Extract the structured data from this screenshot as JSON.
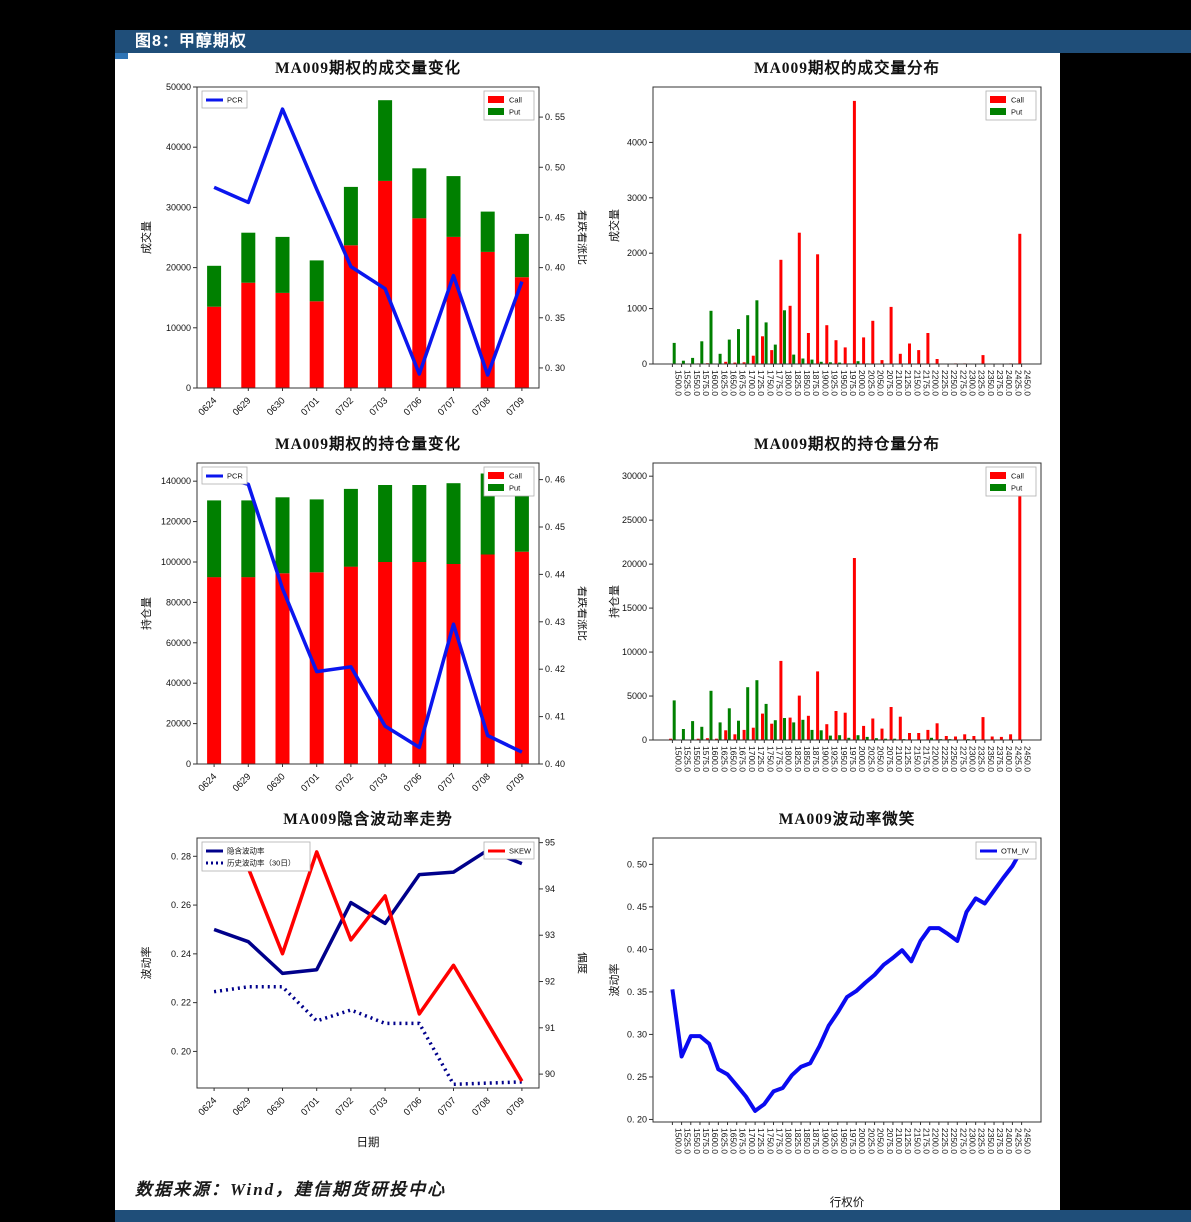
{
  "banner": {
    "label": "图8：甲醇期权"
  },
  "source_note": "数据来源：Wind，建信期货研投中心",
  "chart_data": [
    {
      "type": "bar",
      "bar_mode": "stacked",
      "title": "MA009期权的成交量变化",
      "ylabel_left": "成交量",
      "ylabel_right": "看跌看涨比",
      "xlabel": "",
      "categories": [
        "0624",
        "0629",
        "0630",
        "0701",
        "0702",
        "0703",
        "0706",
        "0707",
        "0708",
        "0709"
      ],
      "left_ylim": [
        0,
        50000
      ],
      "left_tick_vals": [
        0,
        10000,
        20000,
        30000,
        40000,
        50000
      ],
      "left_tick_labels": [
        "0",
        "10000",
        "20000",
        "30000",
        "40000",
        "50000"
      ],
      "right_ylim": [
        0.28,
        0.58
      ],
      "right_tick_vals": [
        0.3,
        0.35,
        0.4,
        0.45,
        0.5,
        0.55
      ],
      "right_tick_labels": [
        "0. 30",
        "0. 35",
        "0. 40",
        "0. 45",
        "0. 50",
        "0. 55"
      ],
      "series": [
        {
          "name": "Call",
          "type": "bar",
          "axis": "left",
          "color": "#ff0000",
          "values": [
            13500,
            17500,
            15800,
            14400,
            23700,
            34400,
            28200,
            25100,
            22600,
            18400
          ]
        },
        {
          "name": "Put",
          "type": "bar",
          "axis": "left",
          "color": "#008000",
          "values": [
            6800,
            8300,
            9300,
            6800,
            9700,
            13400,
            8300,
            10100,
            6700,
            7200
          ]
        },
        {
          "name": "PCR",
          "type": "line",
          "axis": "right",
          "color": "#0b16ee",
          "values": [
            0.48,
            0.465,
            0.558,
            0.478,
            0.401,
            0.379,
            0.294,
            0.392,
            0.293,
            0.386
          ]
        }
      ],
      "legends": [
        {
          "pos": "tl",
          "entries": [
            {
              "label": "PCR",
              "style": "line",
              "color": "#0b16ee"
            }
          ]
        },
        {
          "pos": "tr",
          "entries": [
            {
              "label": "Call",
              "style": "swatch",
              "color": "#ff0000"
            },
            {
              "label": "Put",
              "style": "swatch",
              "color": "#008000"
            }
          ]
        }
      ]
    },
    {
      "type": "bar",
      "bar_mode": "grouped",
      "title": "MA009期权的成交量分布",
      "ylabel_left": "成交量",
      "xlabel": "",
      "categories": [
        "1500.0",
        "1525.0",
        "1550.0",
        "1575.0",
        "1600.0",
        "1625.0",
        "1650.0",
        "1675.0",
        "1700.0",
        "1725.0",
        "1750.0",
        "1775.0",
        "1800.0",
        "1825.0",
        "1850.0",
        "1875.0",
        "1900.0",
        "1925.0",
        "1950.0",
        "1975.0",
        "2000.0",
        "2025.0",
        "2050.0",
        "2075.0",
        "2100.0",
        "2125.0",
        "2150.0",
        "2175.0",
        "2200.0",
        "2225.0",
        "2250.0",
        "2275.0",
        "2300.0",
        "2325.0",
        "2350.0",
        "2375.0",
        "2400.0",
        "2425.0",
        "2450.0"
      ],
      "left_ylim": [
        0,
        5000
      ],
      "left_tick_vals": [
        0,
        1000,
        2000,
        3000,
        4000
      ],
      "left_tick_labels": [
        "0",
        "1000",
        "2000",
        "3000",
        "4000"
      ],
      "series": [
        {
          "name": "Call",
          "type": "bar",
          "axis": "left",
          "color": "#ff0000",
          "values": [
            0,
            0,
            0,
            10,
            15,
            0,
            40,
            25,
            30,
            150,
            500,
            250,
            1880,
            1050,
            2370,
            560,
            1980,
            700,
            430,
            300,
            4750,
            480,
            780,
            70,
            1030,
            185,
            370,
            250,
            560,
            90,
            0,
            10,
            10,
            0,
            160,
            0,
            0,
            10,
            2350
          ]
        },
        {
          "name": "Put",
          "type": "bar",
          "axis": "left",
          "color": "#008000",
          "values": [
            380,
            60,
            110,
            410,
            960,
            185,
            440,
            630,
            880,
            1150,
            750,
            350,
            970,
            170,
            100,
            80,
            40,
            30,
            25,
            10,
            50,
            10,
            0,
            0,
            0,
            0,
            0,
            0,
            0,
            0,
            0,
            0,
            0,
            0,
            0,
            0,
            0,
            0,
            0
          ]
        }
      ],
      "legends": [
        {
          "pos": "tr",
          "entries": [
            {
              "label": "Call",
              "style": "swatch",
              "color": "#ff0000"
            },
            {
              "label": "Put",
              "style": "swatch",
              "color": "#008000"
            }
          ]
        }
      ]
    },
    {
      "type": "bar",
      "bar_mode": "stacked",
      "title": "MA009期权的持仓量变化",
      "ylabel_left": "持仓量",
      "ylabel_right": "看跌看涨比",
      "xlabel": "",
      "categories": [
        "0624",
        "0629",
        "0630",
        "0701",
        "0702",
        "0703",
        "0706",
        "0707",
        "0708",
        "0709"
      ],
      "left_ylim": [
        0,
        149000
      ],
      "left_tick_vals": [
        0,
        20000,
        40000,
        60000,
        80000,
        100000,
        120000,
        140000
      ],
      "left_tick_labels": [
        "0",
        "20000",
        "40000",
        "60000",
        "80000",
        "100000",
        "120000",
        "140000"
      ],
      "right_ylim": [
        0.4,
        0.4635
      ],
      "right_tick_vals": [
        0.4,
        0.41,
        0.42,
        0.43,
        0.44,
        0.45,
        0.46
      ],
      "right_tick_labels": [
        "0. 40",
        "0. 41",
        "0. 42",
        "0. 43",
        "0. 44",
        "0. 45",
        "0. 46"
      ],
      "series": [
        {
          "name": "Call",
          "type": "bar",
          "axis": "left",
          "color": "#ff0000",
          "values": [
            92500,
            92500,
            94400,
            94900,
            97700,
            100000,
            100000,
            99000,
            103700,
            105100
          ]
        },
        {
          "name": "Put",
          "type": "bar",
          "axis": "left",
          "color": "#008000",
          "values": [
            38000,
            38000,
            37600,
            36100,
            38500,
            38100,
            38100,
            40000,
            40100,
            39200
          ]
        },
        {
          "name": "PCR",
          "type": "line",
          "axis": "right",
          "color": "#0b16ee",
          "values": [
            0.461,
            0.459,
            0.437,
            0.4195,
            0.4205,
            0.408,
            0.4035,
            0.4295,
            0.406,
            0.4025
          ]
        }
      ],
      "legends": [
        {
          "pos": "tl",
          "entries": [
            {
              "label": "PCR",
              "style": "line",
              "color": "#0b16ee"
            }
          ]
        },
        {
          "pos": "tr",
          "entries": [
            {
              "label": "Call",
              "style": "swatch",
              "color": "#ff0000"
            },
            {
              "label": "Put",
              "style": "swatch",
              "color": "#008000"
            }
          ]
        }
      ]
    },
    {
      "type": "bar",
      "bar_mode": "grouped",
      "title": "MA009期权的持仓量分布",
      "ylabel_left": "持仓量",
      "xlabel": "",
      "categories": [
        "1500.0",
        "1525.0",
        "1550.0",
        "1575.0",
        "1600.0",
        "1625.0",
        "1650.0",
        "1675.0",
        "1700.0",
        "1725.0",
        "1750.0",
        "1775.0",
        "1800.0",
        "1825.0",
        "1850.0",
        "1875.0",
        "1900.0",
        "1925.0",
        "1950.0",
        "1975.0",
        "2000.0",
        "2025.0",
        "2050.0",
        "2075.0",
        "2100.0",
        "2125.0",
        "2150.0",
        "2175.0",
        "2200.0",
        "2225.0",
        "2250.0",
        "2275.0",
        "2300.0",
        "2325.0",
        "2350.0",
        "2375.0",
        "2400.0",
        "2425.0",
        "2450.0"
      ],
      "left_ylim": [
        0,
        31500
      ],
      "left_tick_vals": [
        0,
        5000,
        10000,
        15000,
        20000,
        25000,
        30000
      ],
      "left_tick_labels": [
        "0",
        "5000",
        "10000",
        "15000",
        "20000",
        "25000",
        "30000"
      ],
      "series": [
        {
          "name": "Call",
          "type": "bar",
          "axis": "left",
          "color": "#ff0000",
          "values": [
            150,
            0,
            50,
            150,
            200,
            150,
            1100,
            650,
            1150,
            1400,
            3000,
            1850,
            9000,
            2550,
            5050,
            2750,
            7800,
            1800,
            3300,
            3100,
            20700,
            1600,
            2450,
            1300,
            3750,
            2650,
            800,
            800,
            1150,
            1900,
            450,
            400,
            650,
            450,
            2600,
            400,
            350,
            650,
            30000
          ]
        },
        {
          "name": "Put",
          "type": "bar",
          "axis": "left",
          "color": "#008000",
          "values": [
            4500,
            1250,
            2150,
            1500,
            5600,
            2000,
            3600,
            2200,
            6000,
            6800,
            4100,
            2250,
            2500,
            2000,
            2300,
            1150,
            1100,
            500,
            550,
            250,
            550,
            350,
            200,
            150,
            150,
            100,
            50,
            50,
            250,
            100,
            100,
            50,
            100,
            50,
            0,
            0,
            0,
            0,
            0
          ]
        }
      ],
      "legends": [
        {
          "pos": "tr",
          "entries": [
            {
              "label": "Call",
              "style": "swatch",
              "color": "#ff0000"
            },
            {
              "label": "Put",
              "style": "swatch",
              "color": "#008000"
            }
          ]
        }
      ]
    },
    {
      "type": "line",
      "title": "MA009隐含波动率走势",
      "ylabel_left": "波动率",
      "ylabel_right": "偏度",
      "xlabel": "日期",
      "categories": [
        "0624",
        "0629",
        "0630",
        "0701",
        "0702",
        "0703",
        "0706",
        "0707",
        "0708",
        "0709"
      ],
      "left_ylim": [
        0.185,
        0.2875
      ],
      "left_tick_vals": [
        0.2,
        0.22,
        0.24,
        0.26,
        0.28
      ],
      "left_tick_labels": [
        "0. 20",
        "0. 22",
        "0. 24",
        "0. 26",
        "0. 28"
      ],
      "right_ylim": [
        89.7,
        95.1
      ],
      "right_tick_vals": [
        90,
        91,
        92,
        93,
        94,
        95
      ],
      "right_tick_labels": [
        "90",
        "91",
        "92",
        "93",
        "94",
        "95"
      ],
      "series": [
        {
          "name": "隐含波动率",
          "type": "line",
          "axis": "left",
          "color": "#00008b",
          "values": [
            0.25,
            0.245,
            0.232,
            0.2335,
            0.261,
            0.2525,
            0.2725,
            0.2735,
            0.2825,
            0.277
          ]
        },
        {
          "name": "历史波动率（30日）",
          "type": "line",
          "axis": "left",
          "color": "#00008b",
          "dotted": true,
          "values": [
            0.2245,
            0.2265,
            0.2265,
            0.2125,
            0.217,
            0.2115,
            0.2115,
            0.1865,
            0.187,
            0.1875
          ]
        },
        {
          "name": "SKEW",
          "type": "line",
          "axis": "right",
          "color": "#ff0000",
          "values": [
            94.7,
            94.45,
            92.6,
            94.8,
            92.9,
            93.85,
            91.3,
            92.35,
            91.1,
            89.85
          ]
        }
      ],
      "legends": [
        {
          "pos": "tl",
          "entries": [
            {
              "label": "隐含波动率",
              "style": "line",
              "color": "#00008b"
            },
            {
              "label": "历史波动率（30日）",
              "style": "line-dotted",
              "color": "#00008b"
            }
          ]
        },
        {
          "pos": "tr",
          "entries": [
            {
              "label": "SKEW",
              "style": "line",
              "color": "#ff0000"
            }
          ]
        }
      ]
    },
    {
      "type": "line",
      "title": "MA009波动率微笑",
      "ylabel_left": "波动率",
      "xlabel": "行权价",
      "categories": [
        "1500.0",
        "1525.0",
        "1550.0",
        "1575.0",
        "1600.0",
        "1625.0",
        "1650.0",
        "1675.0",
        "1700.0",
        "1725.0",
        "1750.0",
        "1775.0",
        "1800.0",
        "1825.0",
        "1850.0",
        "1875.0",
        "1900.0",
        "1925.0",
        "1950.0",
        "1975.0",
        "2000.0",
        "2025.0",
        "2050.0",
        "2075.0",
        "2100.0",
        "2125.0",
        "2150.0",
        "2175.0",
        "2200.0",
        "2225.0",
        "2250.0",
        "2275.0",
        "2300.0",
        "2325.0",
        "2350.0",
        "2375.0",
        "2400.0",
        "2425.0",
        "2450.0"
      ],
      "left_ylim": [
        0.197,
        0.531
      ],
      "left_tick_vals": [
        0.2,
        0.25,
        0.3,
        0.35,
        0.4,
        0.45,
        0.5
      ],
      "left_tick_labels": [
        "0. 20",
        "0. 25",
        "0. 30",
        "0. 35",
        "0. 40",
        "0. 45",
        "0. 50"
      ],
      "series": [
        {
          "name": "OTM_IV",
          "type": "line",
          "axis": "left",
          "color": "#0a0af0",
          "values": [
            0.353,
            0.274,
            0.298,
            0.298,
            0.289,
            0.259,
            0.253,
            0.24,
            0.227,
            0.21,
            0.218,
            0.233,
            0.237,
            0.252,
            0.262,
            0.266,
            0.286,
            0.31,
            0.326,
            0.344,
            0.351,
            0.361,
            0.37,
            0.382,
            0.39,
            0.399,
            0.386,
            0.41,
            0.425,
            0.425,
            0.418,
            0.41,
            0.444,
            0.46,
            0.454,
            0.469,
            0.484,
            0.498,
            0.517
          ]
        }
      ],
      "legends": [
        {
          "pos": "tr",
          "entries": [
            {
              "label": "OTM_IV",
              "style": "line",
              "color": "#0a0af0"
            }
          ]
        }
      ]
    }
  ]
}
